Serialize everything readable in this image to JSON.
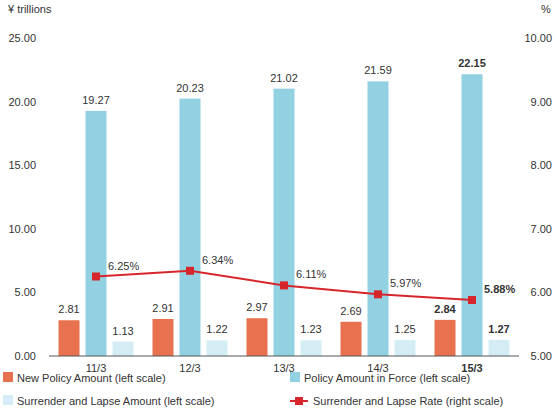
{
  "chart_data": {
    "type": "bar",
    "y_label": "¥ trillions",
    "y2_label": "%",
    "categories": [
      "11/3",
      "12/3",
      "13/3",
      "14/3",
      "15/3"
    ],
    "ylim": [
      0,
      25
    ],
    "yticks": [
      {
        "value": 0,
        "label": "0.00"
      },
      {
        "value": 5,
        "label": "5.00"
      },
      {
        "value": 10,
        "label": "10.00"
      },
      {
        "value": 15,
        "label": "15.00"
      },
      {
        "value": 20,
        "label": "20.00"
      },
      {
        "value": 25,
        "label": "25.00"
      }
    ],
    "y2lim": [
      5,
      10
    ],
    "y2ticks": [
      {
        "value": 5,
        "label": "5.00"
      },
      {
        "value": 6,
        "label": "6.00"
      },
      {
        "value": 7,
        "label": "7.00"
      },
      {
        "value": 8,
        "label": "8.00"
      },
      {
        "value": 9,
        "label": "9.00"
      },
      {
        "value": 10,
        "label": "10.00"
      }
    ],
    "grid": false,
    "data_labels": true,
    "legend": "bottom",
    "series": [
      {
        "name": "New Policy Amount (left scale)",
        "type": "bar",
        "color": "#e8714f",
        "values": [
          2.81,
          2.91,
          2.97,
          2.69,
          2.84
        ]
      },
      {
        "name": "Policy Amount in Force (left scale)",
        "type": "bar",
        "color": "#92d1e1",
        "values": [
          19.27,
          20.23,
          21.02,
          21.59,
          22.15
        ]
      },
      {
        "name": "Surrender and Lapse Amount (left scale)",
        "type": "bar",
        "color": "#d4edf5",
        "values": [
          1.13,
          1.22,
          1.23,
          1.25,
          1.27
        ]
      },
      {
        "name": "Surrender and Lapse Rate (right scale)",
        "type": "line",
        "axis": "y2",
        "color": "#d7262b",
        "marker": "square",
        "values": [
          6.25,
          6.34,
          6.11,
          5.97,
          5.88
        ],
        "value_labels": [
          "6.25%",
          "6.34%",
          "6.11%",
          "5.97%",
          "5.88%"
        ]
      }
    ]
  }
}
